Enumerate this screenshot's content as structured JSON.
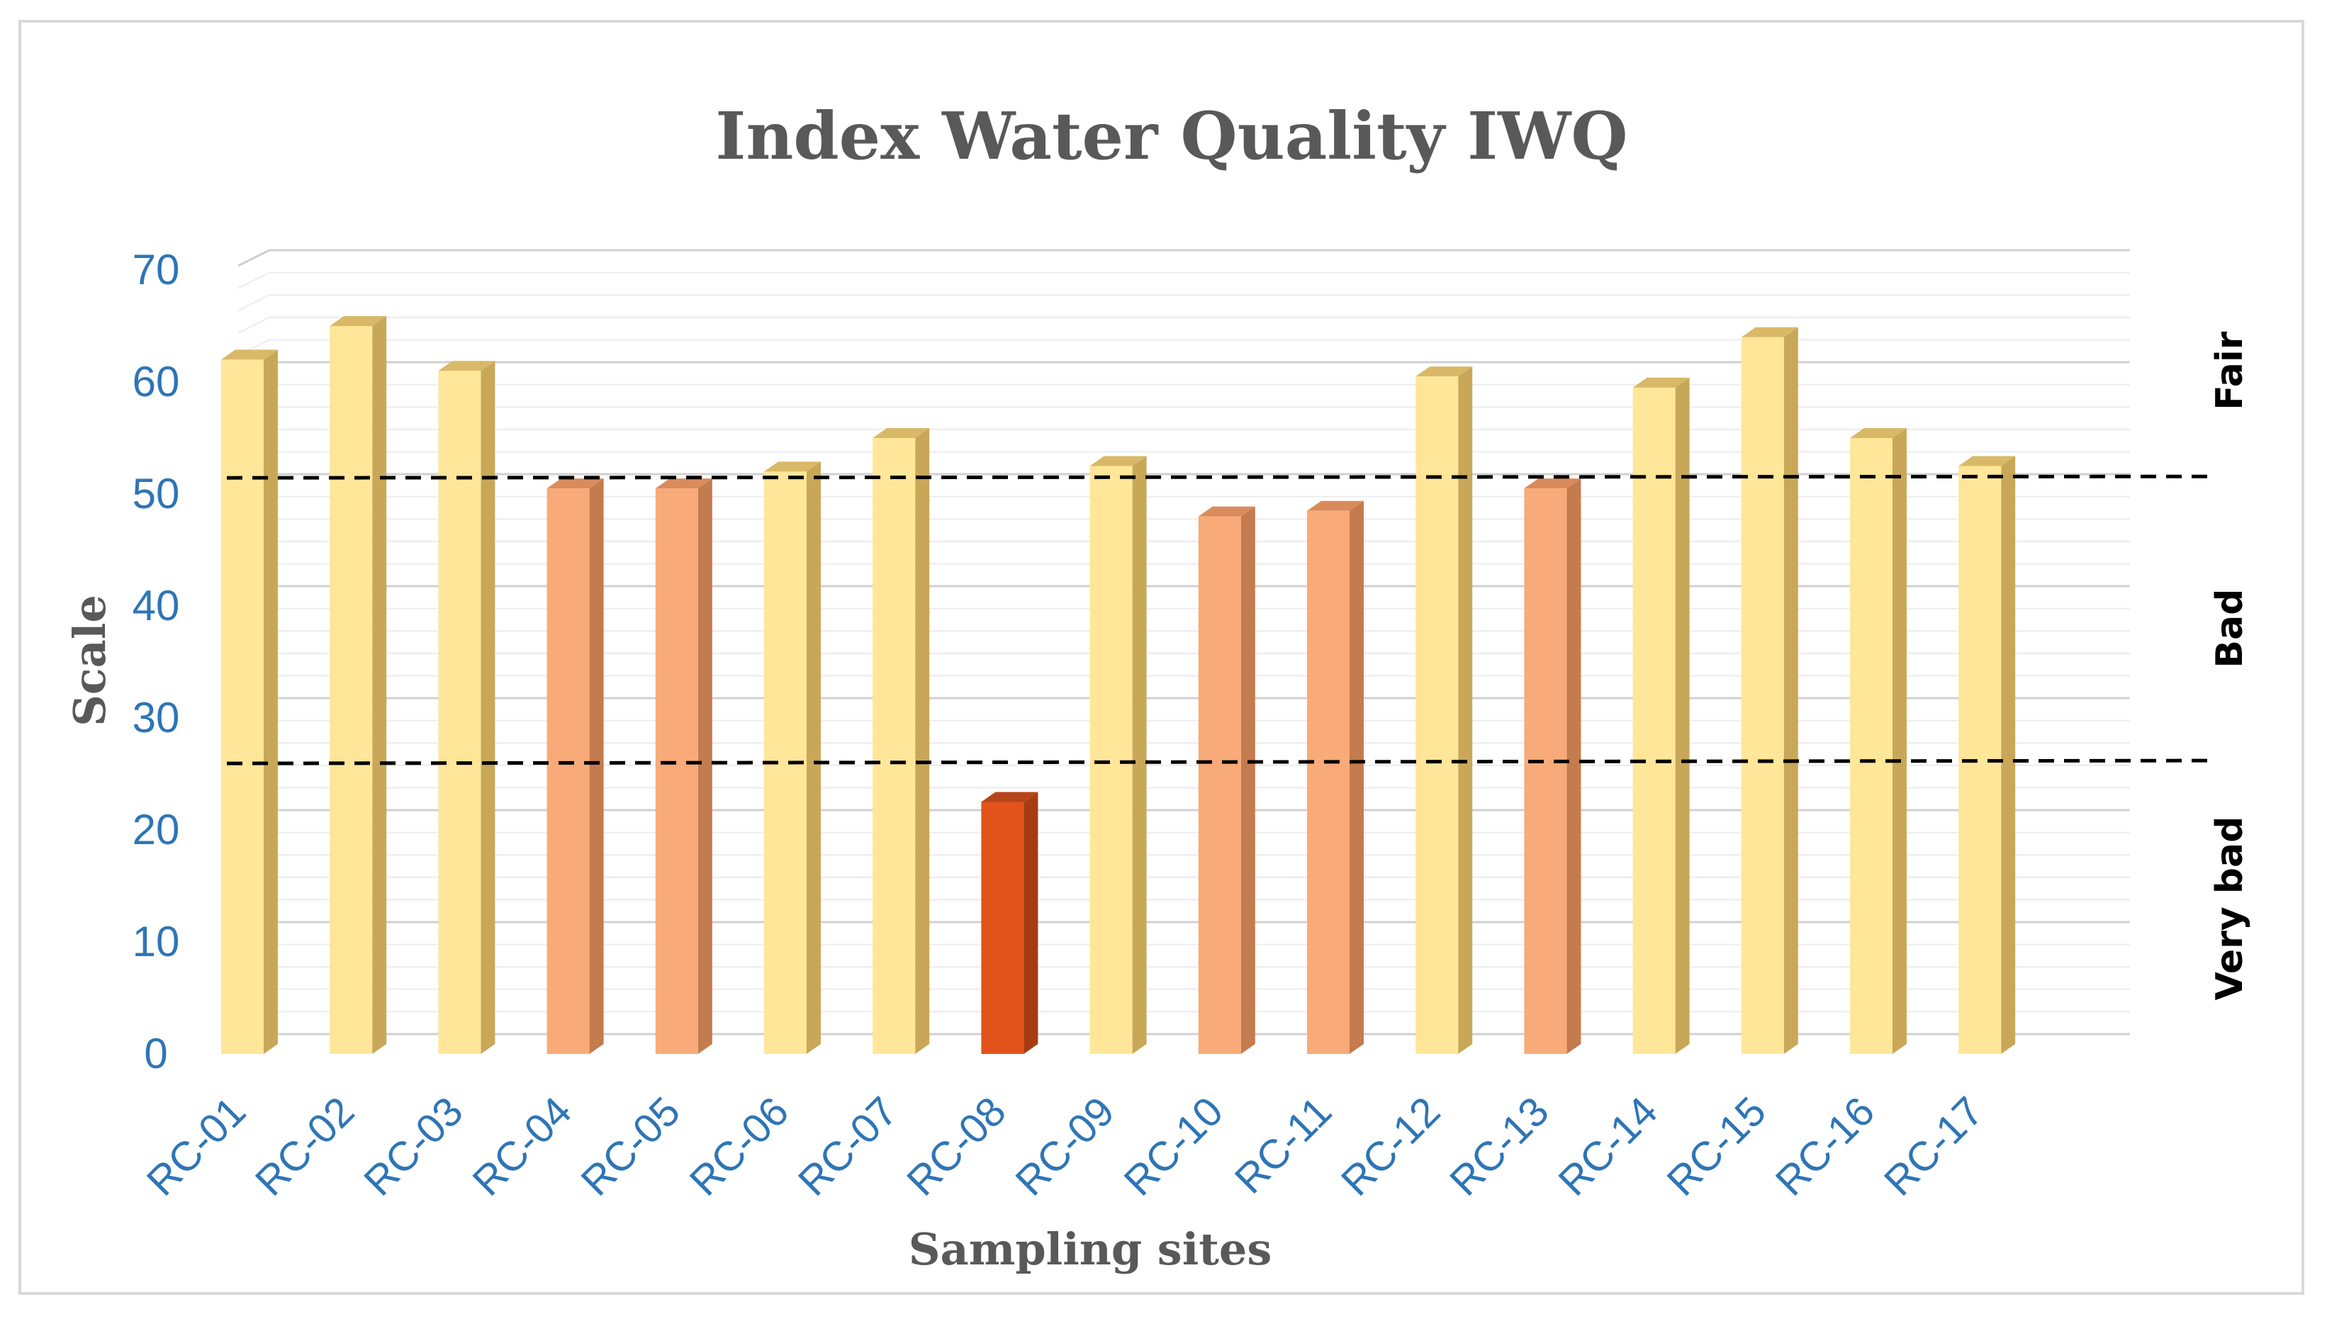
{
  "chart_data": {
    "type": "bar",
    "title": "Index Water Quality IWQ",
    "xlabel": "Sampling sites",
    "ylabel": "Scale",
    "ylim": [
      0,
      70
    ],
    "yticks": [
      "0",
      "10",
      "20",
      "30",
      "40",
      "50",
      "60",
      "70"
    ],
    "categories": [
      "RC-01",
      "RC-02",
      "RC-03",
      "RC-04",
      "RC-05",
      "RC-06",
      "RC-07",
      "RC-08",
      "RC-09",
      "RC-10",
      "RC-11",
      "RC-12",
      "RC-13",
      "RC-14",
      "RC-15",
      "RC-16",
      "RC-17"
    ],
    "values": [
      62,
      65,
      61,
      50.5,
      50.5,
      52,
      55,
      22.5,
      52.5,
      48,
      48.5,
      60.5,
      50.5,
      59.5,
      64,
      55,
      52.5
    ],
    "bar_classes": [
      "fair",
      "fair",
      "fair",
      "bad",
      "bad",
      "fair",
      "fair",
      "very-bad",
      "fair",
      "bad",
      "bad",
      "fair",
      "bad",
      "fair",
      "fair",
      "fair",
      "fair"
    ],
    "colors": {
      "fair": {
        "front": "#ffe699",
        "side": "#c8a858",
        "top": "#d9b968"
      },
      "bad": {
        "front": "#f8ab78",
        "side": "#c47b4d",
        "top": "#d98b5c"
      },
      "very-bad": {
        "front": "#e2531c",
        "side": "#a63c12",
        "top": "#b8441a"
      }
    },
    "thresholds": [
      51,
      25.5
    ],
    "bands": [
      "Fair",
      "Bad",
      "Very bad"
    ],
    "grid": true,
    "legend": "none"
  }
}
